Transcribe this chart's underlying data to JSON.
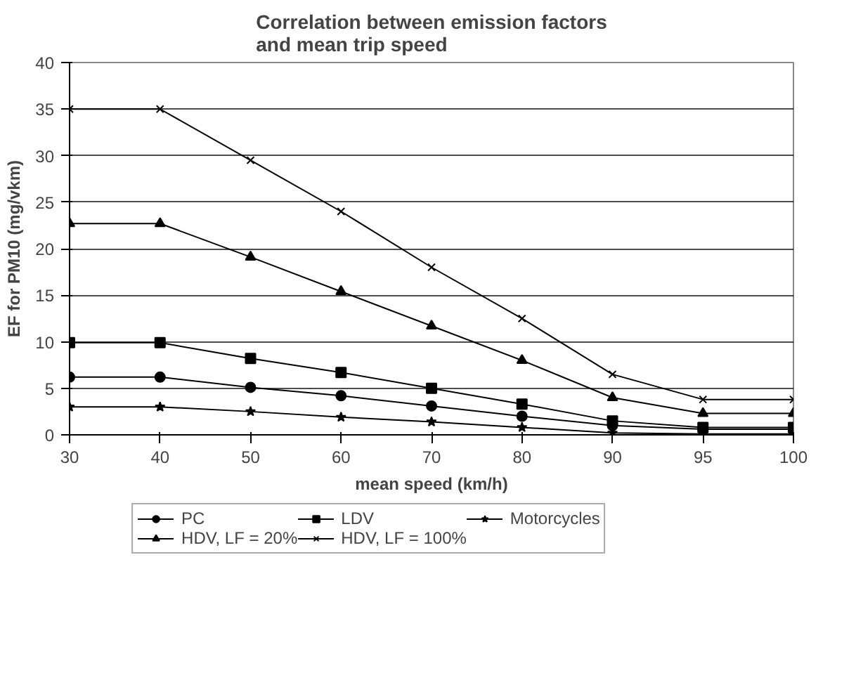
{
  "chart_data": {
    "type": "line",
    "title": "Correlation between emission factors\nand mean trip speed",
    "xlabel": "mean speed (km/h)",
    "ylabel": "EF for PM10 (mg/vkm)",
    "categories": [
      "30",
      "40",
      "50",
      "60",
      "70",
      "80",
      "90",
      "95",
      "100"
    ],
    "ylim": [
      0,
      40
    ],
    "yticks": [
      0,
      5,
      10,
      15,
      20,
      25,
      30,
      35,
      40
    ],
    "grid": "y",
    "legend": "bottom",
    "line_style": "solid",
    "series": [
      {
        "name": "PC",
        "color": "#000000",
        "marker": "circle",
        "values": [
          6.2,
          6.2,
          5.1,
          4.2,
          3.1,
          2,
          1,
          0.6,
          0.6
        ]
      },
      {
        "name": "LDV",
        "color": "#000000",
        "marker": "square",
        "values": [
          9.9,
          9.9,
          8.2,
          6.7,
          5,
          3.3,
          1.5,
          0.8,
          0.8
        ]
      },
      {
        "name": "Motorcycles",
        "color": "#000000",
        "marker": "star",
        "values": [
          3,
          3,
          2.5,
          1.9,
          1.4,
          0.8,
          0.2,
          0.1,
          0.1
        ]
      },
      {
        "name": "HDV, LF = 20%",
        "color": "#000000",
        "marker": "triangle",
        "values": [
          22.7,
          22.7,
          19.1,
          15.4,
          11.7,
          8,
          4,
          2.3,
          2.3
        ]
      },
      {
        "name": "HDV, LF = 100%",
        "color": "#000000",
        "marker": "cross",
        "values": [
          35,
          35,
          29.5,
          24,
          18,
          12.5,
          6.5,
          3.8,
          3.8
        ]
      }
    ]
  }
}
